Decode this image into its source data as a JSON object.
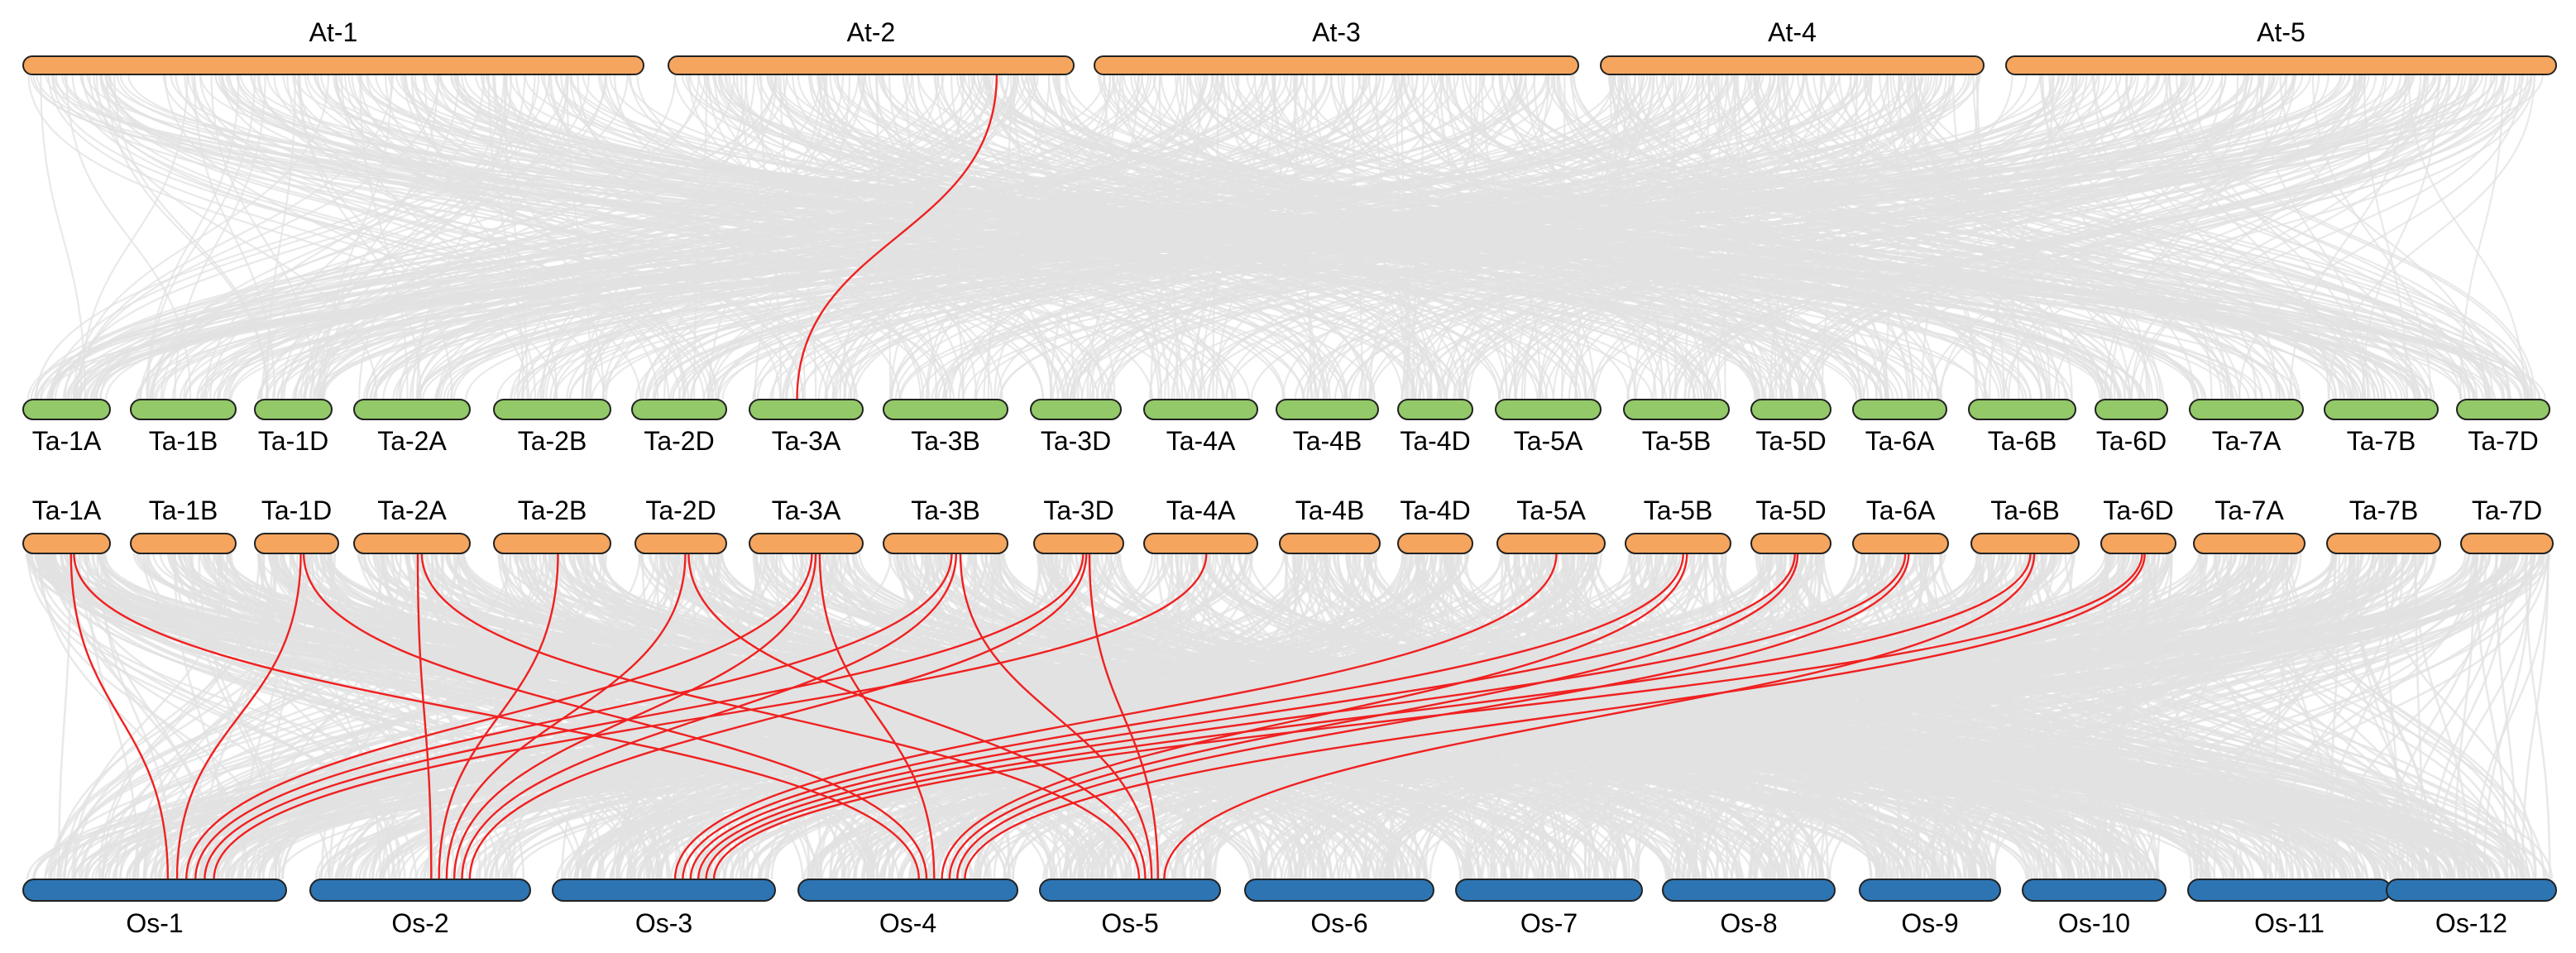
{
  "colors": {
    "background_link": "#e2e2e2",
    "highlight_link": "#f02020",
    "at_bar": "#f6a55e",
    "ta_top_bar": "#93c968",
    "ta_mid_bar": "#f6a55e",
    "os_bar": "#2d74b3",
    "bar_edge": "#222222"
  },
  "tracks": {
    "at": [
      "At-1",
      "At-2",
      "At-3",
      "At-4",
      "At-5"
    ],
    "ta_top": [
      "Ta-1A",
      "Ta-1B",
      "Ta-1D",
      "Ta-2A",
      "Ta-2B",
      "Ta-2D",
      "Ta-3A",
      "Ta-3B",
      "Ta-3D",
      "Ta-4A",
      "Ta-4B",
      "Ta-4D",
      "Ta-5A",
      "Ta-5B",
      "Ta-5D",
      "Ta-6A",
      "Ta-6B",
      "Ta-6D",
      "Ta-7A",
      "Ta-7B",
      "Ta-7D"
    ],
    "ta_mid": [
      "Ta-1A",
      "Ta-1B",
      "Ta-1D",
      "Ta-2A",
      "Ta-2B",
      "Ta-2D",
      "Ta-3A",
      "Ta-3B",
      "Ta-3D",
      "Ta-4A",
      "Ta-4B",
      "Ta-4D",
      "Ta-5A",
      "Ta-5B",
      "Ta-5D",
      "Ta-6A",
      "Ta-6B",
      "Ta-6D",
      "Ta-7A",
      "Ta-7B",
      "Ta-7D"
    ],
    "os": [
      "Os-1",
      "Os-2",
      "Os-3",
      "Os-4",
      "Os-5",
      "Os-6",
      "Os-7",
      "Os-8",
      "Os-9",
      "Os-10",
      "Os-11",
      "Os-12"
    ]
  },
  "highlighted_links": {
    "at_to_ta": [
      {
        "from": "At-2",
        "to": "Ta-3A"
      }
    ],
    "ta_to_os": [
      {
        "from": "Ta-1A",
        "to": "Os-1"
      },
      {
        "from": "Ta-1A",
        "to": "Os-4"
      },
      {
        "from": "Ta-1D",
        "to": "Os-1"
      },
      {
        "from": "Ta-1D",
        "to": "Os-4"
      },
      {
        "from": "Ta-2A",
        "to": "Os-2"
      },
      {
        "from": "Ta-2A",
        "to": "Os-5"
      },
      {
        "from": "Ta-2B",
        "to": "Os-2"
      },
      {
        "from": "Ta-2D",
        "to": "Os-2"
      },
      {
        "from": "Ta-2D",
        "to": "Os-5"
      },
      {
        "from": "Ta-3A",
        "to": "Os-1"
      },
      {
        "from": "Ta-3A",
        "to": "Os-2"
      },
      {
        "from": "Ta-3A",
        "to": "Os-4"
      },
      {
        "from": "Ta-3B",
        "to": "Os-1"
      },
      {
        "from": "Ta-3B",
        "to": "Os-2"
      },
      {
        "from": "Ta-3B",
        "to": "Os-5"
      },
      {
        "from": "Ta-3D",
        "to": "Os-1"
      },
      {
        "from": "Ta-3D",
        "to": "Os-2"
      },
      {
        "from": "Ta-3D",
        "to": "Os-5"
      },
      {
        "from": "Ta-4A",
        "to": "Os-1"
      },
      {
        "from": "Ta-5A",
        "to": "Os-3"
      },
      {
        "from": "Ta-5B",
        "to": "Os-3"
      },
      {
        "from": "Ta-5B",
        "to": "Os-4"
      },
      {
        "from": "Ta-5D",
        "to": "Os-3"
      },
      {
        "from": "Ta-5D",
        "to": "Os-4"
      },
      {
        "from": "Ta-6A",
        "to": "Os-3"
      },
      {
        "from": "Ta-6A",
        "to": "Os-4"
      },
      {
        "from": "Ta-6B",
        "to": "Os-3"
      },
      {
        "from": "Ta-6B",
        "to": "Os-5"
      },
      {
        "from": "Ta-6D",
        "to": "Os-3"
      },
      {
        "from": "Ta-6D",
        "to": "Os-4"
      }
    ]
  }
}
